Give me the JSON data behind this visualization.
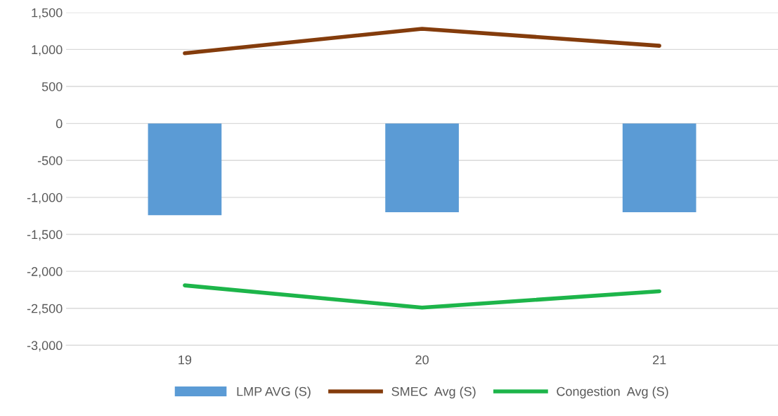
{
  "chart_data": {
    "type": "bar",
    "categories": [
      "19",
      "20",
      "21"
    ],
    "series": [
      {
        "name": "LMP AVG (S)",
        "color": "#5b9bd5",
        "values": [
          -1240,
          -1200,
          -1200
        ]
      },
      {
        "name": "SMEC  Avg (S)",
        "type": "line",
        "color": "#843c0c",
        "values": [
          950,
          1280,
          1050
        ]
      },
      {
        "name": "Congestion  Avg (S)",
        "type": "line",
        "color": "#1db54a",
        "values": [
          -2190,
          -2490,
          -2270
        ]
      }
    ],
    "ylim": [
      -3000,
      1500
    ],
    "yticks": [
      {
        "value": -3000,
        "label": "-3,000"
      },
      {
        "value": -2500,
        "label": "-2,500"
      },
      {
        "value": -2000,
        "label": "-2,000"
      },
      {
        "value": -1500,
        "label": "-1,500"
      },
      {
        "value": -1000,
        "label": "-1,000"
      },
      {
        "value": -500,
        "label": "-500"
      },
      0,
      500,
      {
        "value": 1000,
        "label": "1,000"
      },
      {
        "value": 1500,
        "label": "1,500"
      }
    ],
    "grid": "y",
    "legend": "bottom"
  }
}
